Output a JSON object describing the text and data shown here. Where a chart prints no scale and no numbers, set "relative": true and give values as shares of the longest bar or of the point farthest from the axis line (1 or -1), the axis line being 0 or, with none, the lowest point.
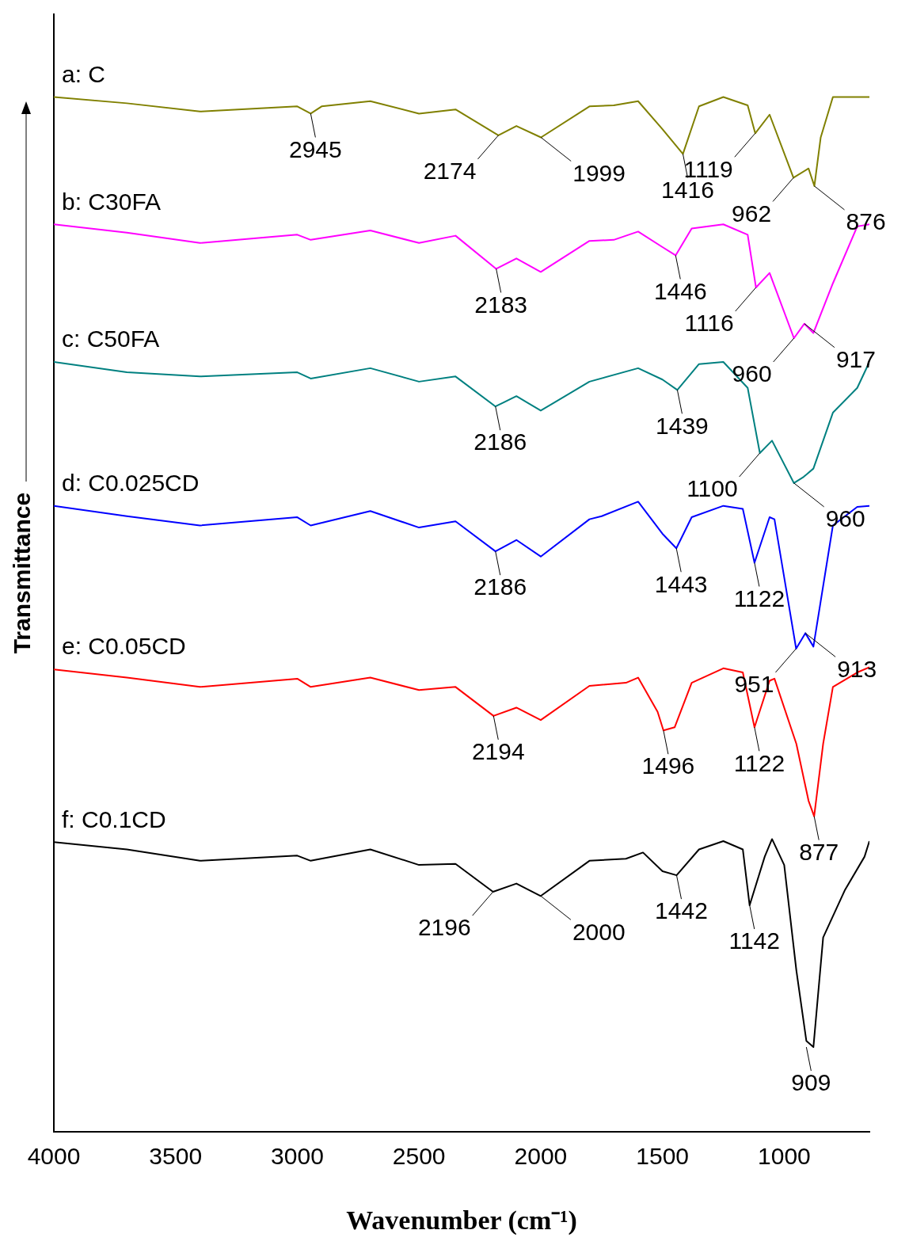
{
  "chart_data": {
    "type": "line",
    "relative": true,
    "xlabel": "Wavenumber (cm⁻¹)",
    "ylabel": "Transmittance",
    "xlim": [
      4000,
      650
    ],
    "xticks": [
      4000,
      3500,
      3000,
      2500,
      2000,
      1500,
      1000
    ],
    "grid": false,
    "legend": false,
    "marker": "none",
    "line_style": "solid",
    "series": [
      {
        "name": "a: C",
        "color": "#808000",
        "x": [
          4000,
          3700,
          3400,
          3000,
          2945,
          2900,
          2700,
          2500,
          2350,
          2174,
          2100,
          1999,
          1800,
          1700,
          1600,
          1500,
          1416,
          1350,
          1250,
          1150,
          1119,
          1060,
          962,
          900,
          876,
          850,
          800,
          650
        ],
        "values": [
          1.0,
          0.994,
          0.986,
          0.991,
          0.984,
          0.991,
          0.996,
          0.984,
          0.988,
          0.963,
          0.972,
          0.961,
          0.991,
          0.992,
          0.996,
          0.969,
          0.945,
          0.991,
          1.0,
          0.992,
          0.965,
          0.983,
          0.922,
          0.931,
          0.914,
          0.961,
          1.0,
          1.0
        ]
      },
      {
        "name": "b: C30FA",
        "color": "#ff00ff",
        "x": [
          4000,
          3700,
          3400,
          3000,
          2945,
          2700,
          2500,
          2350,
          2183,
          2100,
          2000,
          1800,
          1700,
          1600,
          1500,
          1446,
          1380,
          1250,
          1150,
          1116,
          1060,
          960,
          917,
          880,
          800,
          700,
          650
        ],
        "values": [
          0.877,
          0.869,
          0.859,
          0.867,
          0.862,
          0.871,
          0.859,
          0.866,
          0.834,
          0.844,
          0.831,
          0.861,
          0.862,
          0.87,
          0.855,
          0.847,
          0.873,
          0.877,
          0.867,
          0.816,
          0.83,
          0.767,
          0.781,
          0.772,
          0.82,
          0.875,
          0.877
        ]
      },
      {
        "name": "c: C50FA",
        "color": "#008080",
        "x": [
          4000,
          3700,
          3400,
          3000,
          2945,
          2700,
          2500,
          2350,
          2186,
          2100,
          2000,
          1800,
          1600,
          1500,
          1439,
          1350,
          1250,
          1150,
          1100,
          1050,
          960,
          920,
          880,
          800,
          700,
          650
        ],
        "values": [
          0.744,
          0.734,
          0.73,
          0.734,
          0.728,
          0.738,
          0.725,
          0.73,
          0.701,
          0.711,
          0.697,
          0.725,
          0.738,
          0.727,
          0.717,
          0.742,
          0.744,
          0.719,
          0.656,
          0.668,
          0.627,
          0.633,
          0.641,
          0.695,
          0.719,
          0.744
        ]
      },
      {
        "name": "d: C0.025CD",
        "color": "#0000ff",
        "x": [
          4000,
          3700,
          3400,
          3000,
          2945,
          2700,
          2500,
          2350,
          2186,
          2100,
          2000,
          1800,
          1750,
          1600,
          1500,
          1443,
          1380,
          1250,
          1170,
          1122,
          1060,
          1040,
          951,
          913,
          880,
          800,
          700,
          650
        ],
        "values": [
          0.605,
          0.595,
          0.586,
          0.594,
          0.586,
          0.6,
          0.584,
          0.59,
          0.561,
          0.572,
          0.556,
          0.592,
          0.595,
          0.609,
          0.578,
          0.564,
          0.594,
          0.605,
          0.602,
          0.55,
          0.594,
          0.592,
          0.467,
          0.482,
          0.469,
          0.586,
          0.604,
          0.605
        ]
      },
      {
        "name": "e: C0.05CD",
        "color": "#ff0000",
        "x": [
          4000,
          3700,
          3400,
          3000,
          2945,
          2700,
          2500,
          2350,
          2194,
          2100,
          2000,
          1800,
          1650,
          1600,
          1520,
          1496,
          1450,
          1380,
          1250,
          1170,
          1122,
          1060,
          1040,
          950,
          900,
          877,
          840,
          800,
          700,
          650
        ],
        "values": [
          0.447,
          0.439,
          0.43,
          0.438,
          0.43,
          0.439,
          0.427,
          0.43,
          0.402,
          0.41,
          0.398,
          0.431,
          0.434,
          0.439,
          0.406,
          0.388,
          0.391,
          0.434,
          0.448,
          0.444,
          0.391,
          0.436,
          0.438,
          0.375,
          0.32,
          0.305,
          0.375,
          0.43,
          0.444,
          0.449
        ]
      },
      {
        "name": "f: C0.1CD",
        "color": "#000000",
        "x": [
          4000,
          3700,
          3400,
          3000,
          2945,
          2700,
          2500,
          2350,
          2196,
          2100,
          2000,
          1800,
          1650,
          1580,
          1500,
          1442,
          1350,
          1250,
          1170,
          1142,
          1080,
          1050,
          1000,
          950,
          909,
          880,
          840,
          750,
          670,
          650
        ],
        "values": [
          0.28,
          0.273,
          0.262,
          0.267,
          0.262,
          0.273,
          0.258,
          0.259,
          0.232,
          0.24,
          0.228,
          0.262,
          0.264,
          0.27,
          0.252,
          0.248,
          0.273,
          0.281,
          0.273,
          0.219,
          0.266,
          0.283,
          0.258,
          0.156,
          0.088,
          0.082,
          0.188,
          0.234,
          0.266,
          0.281
        ]
      }
    ],
    "annotations": [
      {
        "text": "2945",
        "x": 2945,
        "y": 0.984
      },
      {
        "text": "2174",
        "x": 2174,
        "y": 0.963
      },
      {
        "text": "1999",
        "x": 1999,
        "y": 0.961
      },
      {
        "text": "1416",
        "x": 1416,
        "y": 0.945
      },
      {
        "text": "1119",
        "x": 1119,
        "y": 0.965
      },
      {
        "text": "962",
        "x": 962,
        "y": 0.922
      },
      {
        "text": "876",
        "x": 876,
        "y": 0.914
      },
      {
        "text": "2183",
        "x": 2183,
        "y": 0.834
      },
      {
        "text": "1446",
        "x": 1446,
        "y": 0.847
      },
      {
        "text": "1116",
        "x": 1116,
        "y": 0.816
      },
      {
        "text": "960",
        "x": 960,
        "y": 0.767
      },
      {
        "text": "917",
        "x": 917,
        "y": 0.781
      },
      {
        "text": "2186",
        "x": 2186,
        "y": 0.701
      },
      {
        "text": "1439",
        "x": 1439,
        "y": 0.717
      },
      {
        "text": "1100",
        "x": 1100,
        "y": 0.656
      },
      {
        "text": "960",
        "x": 960,
        "y": 0.627
      },
      {
        "text": "2186",
        "x": 2186,
        "y": 0.561
      },
      {
        "text": "1443",
        "x": 1443,
        "y": 0.564
      },
      {
        "text": "1122",
        "x": 1122,
        "y": 0.55
      },
      {
        "text": "951",
        "x": 951,
        "y": 0.467
      },
      {
        "text": "913",
        "x": 913,
        "y": 0.482
      },
      {
        "text": "2194",
        "x": 2194,
        "y": 0.402
      },
      {
        "text": "1496",
        "x": 1496,
        "y": 0.388
      },
      {
        "text": "1122",
        "x": 1122,
        "y": 0.391
      },
      {
        "text": "877",
        "x": 877,
        "y": 0.305
      },
      {
        "text": "2196",
        "x": 2196,
        "y": 0.232
      },
      {
        "text": "2000",
        "x": 2000,
        "y": 0.228
      },
      {
        "text": "1442",
        "x": 1442,
        "y": 0.248
      },
      {
        "text": "1142",
        "x": 1142,
        "y": 0.219
      },
      {
        "text": "909",
        "x": 909,
        "y": 0.082
      }
    ]
  }
}
